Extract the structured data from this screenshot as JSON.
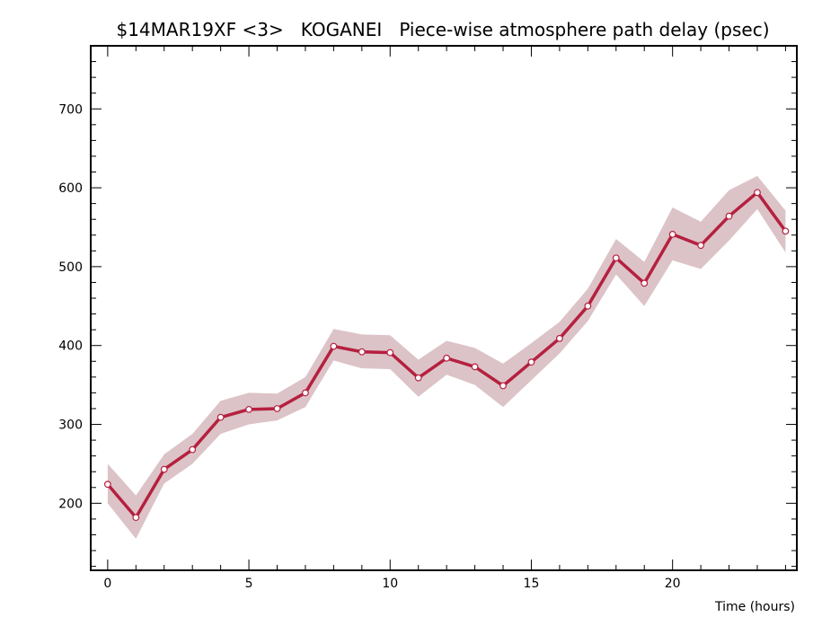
{
  "chart_data": {
    "type": "line",
    "title": "$14MAR19XF <3>   KOGANEI   Piece-wise atmosphere path delay (psec)",
    "xlabel": "Time (hours)",
    "ylabel": "",
    "xlim": [
      -0.6,
      24.4
    ],
    "ylim": [
      115,
      780
    ],
    "x_ticks": [
      0,
      5,
      10,
      15,
      20
    ],
    "y_ticks": [
      200,
      300,
      400,
      500,
      600,
      700
    ],
    "x_minor_step": 1,
    "y_minor_step": 20,
    "grid": false,
    "legend": "none",
    "colors": {
      "line": "#b5203f",
      "band": "#dcc3c7",
      "marker_fill": "#ffffff",
      "axis": "#000000"
    },
    "series": [
      {
        "x": [
          0,
          1,
          2,
          3,
          4,
          5,
          6,
          7,
          8,
          9,
          10,
          11,
          12,
          13,
          14,
          15,
          16,
          17,
          18,
          19,
          20,
          21,
          22,
          23,
          24
        ],
        "values": [
          224,
          182,
          243,
          268,
          309,
          319,
          320,
          340,
          399,
          392,
          391,
          359,
          384,
          373,
          349,
          379,
          409,
          450,
          511,
          479,
          541,
          527,
          564,
          594,
          545
        ],
        "upper": [
          250,
          210,
          262,
          288,
          330,
          340,
          339,
          360,
          421,
          414,
          413,
          382,
          406,
          397,
          377,
          403,
          430,
          472,
          535,
          506,
          575,
          557,
          597,
          615,
          571
        ],
        "lower": [
          200,
          155,
          225,
          250,
          288,
          300,
          305,
          322,
          381,
          371,
          370,
          335,
          363,
          350,
          322,
          356,
          390,
          431,
          490,
          450,
          508,
          497,
          533,
          573,
          518
        ]
      }
    ]
  }
}
